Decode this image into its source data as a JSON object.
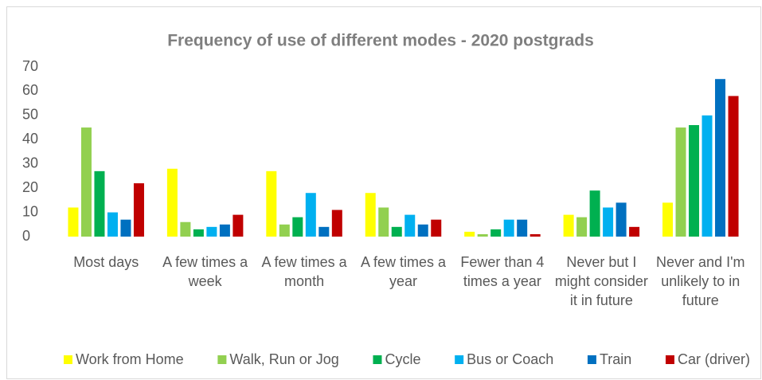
{
  "chart_data": {
    "type": "bar",
    "title": "Frequency of use of different modes - 2020 postgrads",
    "categories": [
      "Most days",
      "A few times a week",
      "A few times a month",
      "A few times a year",
      "Fewer than 4 times a year",
      "Never but I might consider it in future",
      "Never and I'm unlikely to in future"
    ],
    "series": [
      {
        "name": "Work from Home",
        "color": "#ffff00",
        "values": [
          12,
          28,
          27,
          18,
          2,
          9,
          14
        ]
      },
      {
        "name": "Walk, Run or Jog",
        "color": "#92d050",
        "values": [
          45,
          6,
          5,
          12,
          1,
          8,
          45
        ]
      },
      {
        "name": "Cycle",
        "color": "#00b050",
        "values": [
          27,
          3,
          8,
          4,
          3,
          19,
          46
        ]
      },
      {
        "name": "Bus or Coach",
        "color": "#00b0f0",
        "values": [
          10,
          4,
          18,
          9,
          7,
          12,
          50
        ]
      },
      {
        "name": "Train",
        "color": "#0070c0",
        "values": [
          7,
          5,
          4,
          5,
          7,
          14,
          65
        ]
      },
      {
        "name": "Car (driver)",
        "color": "#c00000",
        "values": [
          22,
          9,
          11,
          7,
          1,
          4,
          58
        ]
      }
    ],
    "ylim": [
      0,
      70
    ],
    "yticks": [
      0,
      10,
      20,
      30,
      40,
      50,
      60,
      70
    ],
    "grid": false,
    "legend": "bottom"
  }
}
